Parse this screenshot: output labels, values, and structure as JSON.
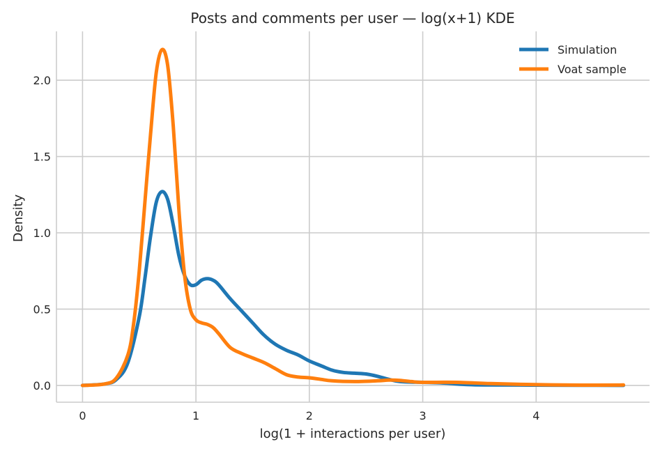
{
  "chart_data": {
    "type": "line",
    "title": "Posts and comments per user — log(x+1) KDE",
    "xlabel": "log(1 + interactions per user)",
    "ylabel": "Density",
    "xlim": [
      -0.23,
      5.0
    ],
    "ylim": [
      -0.11,
      2.32
    ],
    "xticks": [
      0,
      1,
      2,
      3,
      4
    ],
    "yticks": [
      0.0,
      0.5,
      1.0,
      1.5,
      2.0
    ],
    "xtick_labels": [
      "0",
      "1",
      "2",
      "3",
      "4"
    ],
    "ytick_labels": [
      "0.0",
      "0.5",
      "1.0",
      "1.5",
      "2.0"
    ],
    "grid": true,
    "legend": "top-right",
    "series": [
      {
        "name": "Simulation",
        "color": "#1f77b4",
        "points": [
          [
            0,
            0
          ],
          [
            0.2,
            0.01
          ],
          [
            0.3,
            0.04
          ],
          [
            0.4,
            0.15
          ],
          [
            0.5,
            0.45
          ],
          [
            0.55,
            0.7
          ],
          [
            0.6,
            0.98
          ],
          [
            0.65,
            1.2
          ],
          [
            0.7,
            1.27
          ],
          [
            0.75,
            1.22
          ],
          [
            0.8,
            1.05
          ],
          [
            0.85,
            0.85
          ],
          [
            0.9,
            0.72
          ],
          [
            0.95,
            0.66
          ],
          [
            1.0,
            0.66
          ],
          [
            1.05,
            0.69
          ],
          [
            1.1,
            0.7
          ],
          [
            1.15,
            0.69
          ],
          [
            1.2,
            0.66
          ],
          [
            1.3,
            0.57
          ],
          [
            1.4,
            0.49
          ],
          [
            1.5,
            0.41
          ],
          [
            1.6,
            0.33
          ],
          [
            1.7,
            0.27
          ],
          [
            1.8,
            0.23
          ],
          [
            1.9,
            0.2
          ],
          [
            2.0,
            0.16
          ],
          [
            2.1,
            0.13
          ],
          [
            2.2,
            0.1
          ],
          [
            2.3,
            0.085
          ],
          [
            2.4,
            0.08
          ],
          [
            2.5,
            0.075
          ],
          [
            2.6,
            0.06
          ],
          [
            2.7,
            0.04
          ],
          [
            2.8,
            0.025
          ],
          [
            3.0,
            0.02
          ],
          [
            3.2,
            0.015
          ],
          [
            3.4,
            0.005
          ],
          [
            3.6,
            0.003
          ],
          [
            4.0,
            0.002
          ],
          [
            4.4,
            0.001
          ],
          [
            4.77,
            0.0
          ]
        ]
      },
      {
        "name": "Voat sample",
        "color": "#ff7f0e",
        "points": [
          [
            0,
            0
          ],
          [
            0.2,
            0.01
          ],
          [
            0.3,
            0.05
          ],
          [
            0.4,
            0.2
          ],
          [
            0.45,
            0.4
          ],
          [
            0.5,
            0.75
          ],
          [
            0.55,
            1.2
          ],
          [
            0.6,
            1.65
          ],
          [
            0.65,
            2.05
          ],
          [
            0.7,
            2.2
          ],
          [
            0.75,
            2.1
          ],
          [
            0.8,
            1.7
          ],
          [
            0.85,
            1.15
          ],
          [
            0.9,
            0.72
          ],
          [
            0.95,
            0.5
          ],
          [
            1.0,
            0.43
          ],
          [
            1.05,
            0.41
          ],
          [
            1.1,
            0.4
          ],
          [
            1.15,
            0.38
          ],
          [
            1.2,
            0.34
          ],
          [
            1.3,
            0.25
          ],
          [
            1.4,
            0.21
          ],
          [
            1.5,
            0.18
          ],
          [
            1.6,
            0.15
          ],
          [
            1.7,
            0.11
          ],
          [
            1.8,
            0.07
          ],
          [
            1.9,
            0.055
          ],
          [
            2.0,
            0.05
          ],
          [
            2.1,
            0.04
          ],
          [
            2.2,
            0.03
          ],
          [
            2.4,
            0.025
          ],
          [
            2.6,
            0.03
          ],
          [
            2.7,
            0.035
          ],
          [
            2.8,
            0.033
          ],
          [
            2.9,
            0.025
          ],
          [
            3.0,
            0.02
          ],
          [
            3.3,
            0.02
          ],
          [
            3.6,
            0.012
          ],
          [
            4.0,
            0.005
          ],
          [
            4.4,
            0.002
          ],
          [
            4.77,
            0.003
          ]
        ]
      }
    ]
  }
}
